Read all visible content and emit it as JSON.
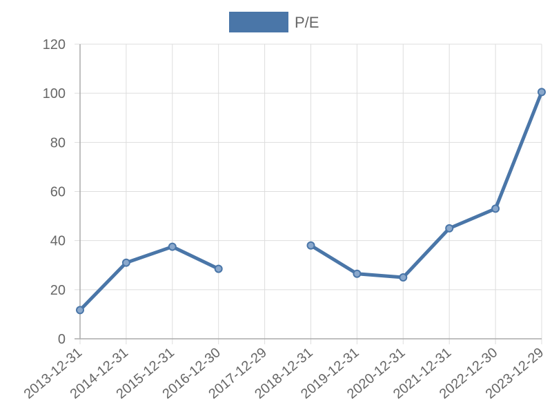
{
  "chart_data": {
    "type": "line",
    "categories": [
      "2013-12-31",
      "2014-12-31",
      "2015-12-31",
      "2016-12-30",
      "2017-12-29",
      "2018-12-31",
      "2019-12-31",
      "2020-12-31",
      "2021-12-31",
      "2022-12-30",
      "2023-12-29"
    ],
    "series": [
      {
        "name": "P/E",
        "values": [
          11.7,
          31.0,
          37.5,
          28.5,
          null,
          38.0,
          26.5,
          25.0,
          45.0,
          53.0,
          100.5
        ]
      }
    ],
    "ylim": [
      0,
      120
    ],
    "yticks": [
      0,
      20,
      40,
      60,
      80,
      100,
      120
    ],
    "grid": true,
    "legend": "top-center",
    "colors": {
      "line": "#4a76a8",
      "point_fill": "#8aa8cc",
      "grid": "#dddddd",
      "axis": "#aaaaaa",
      "text": "#666666"
    }
  }
}
